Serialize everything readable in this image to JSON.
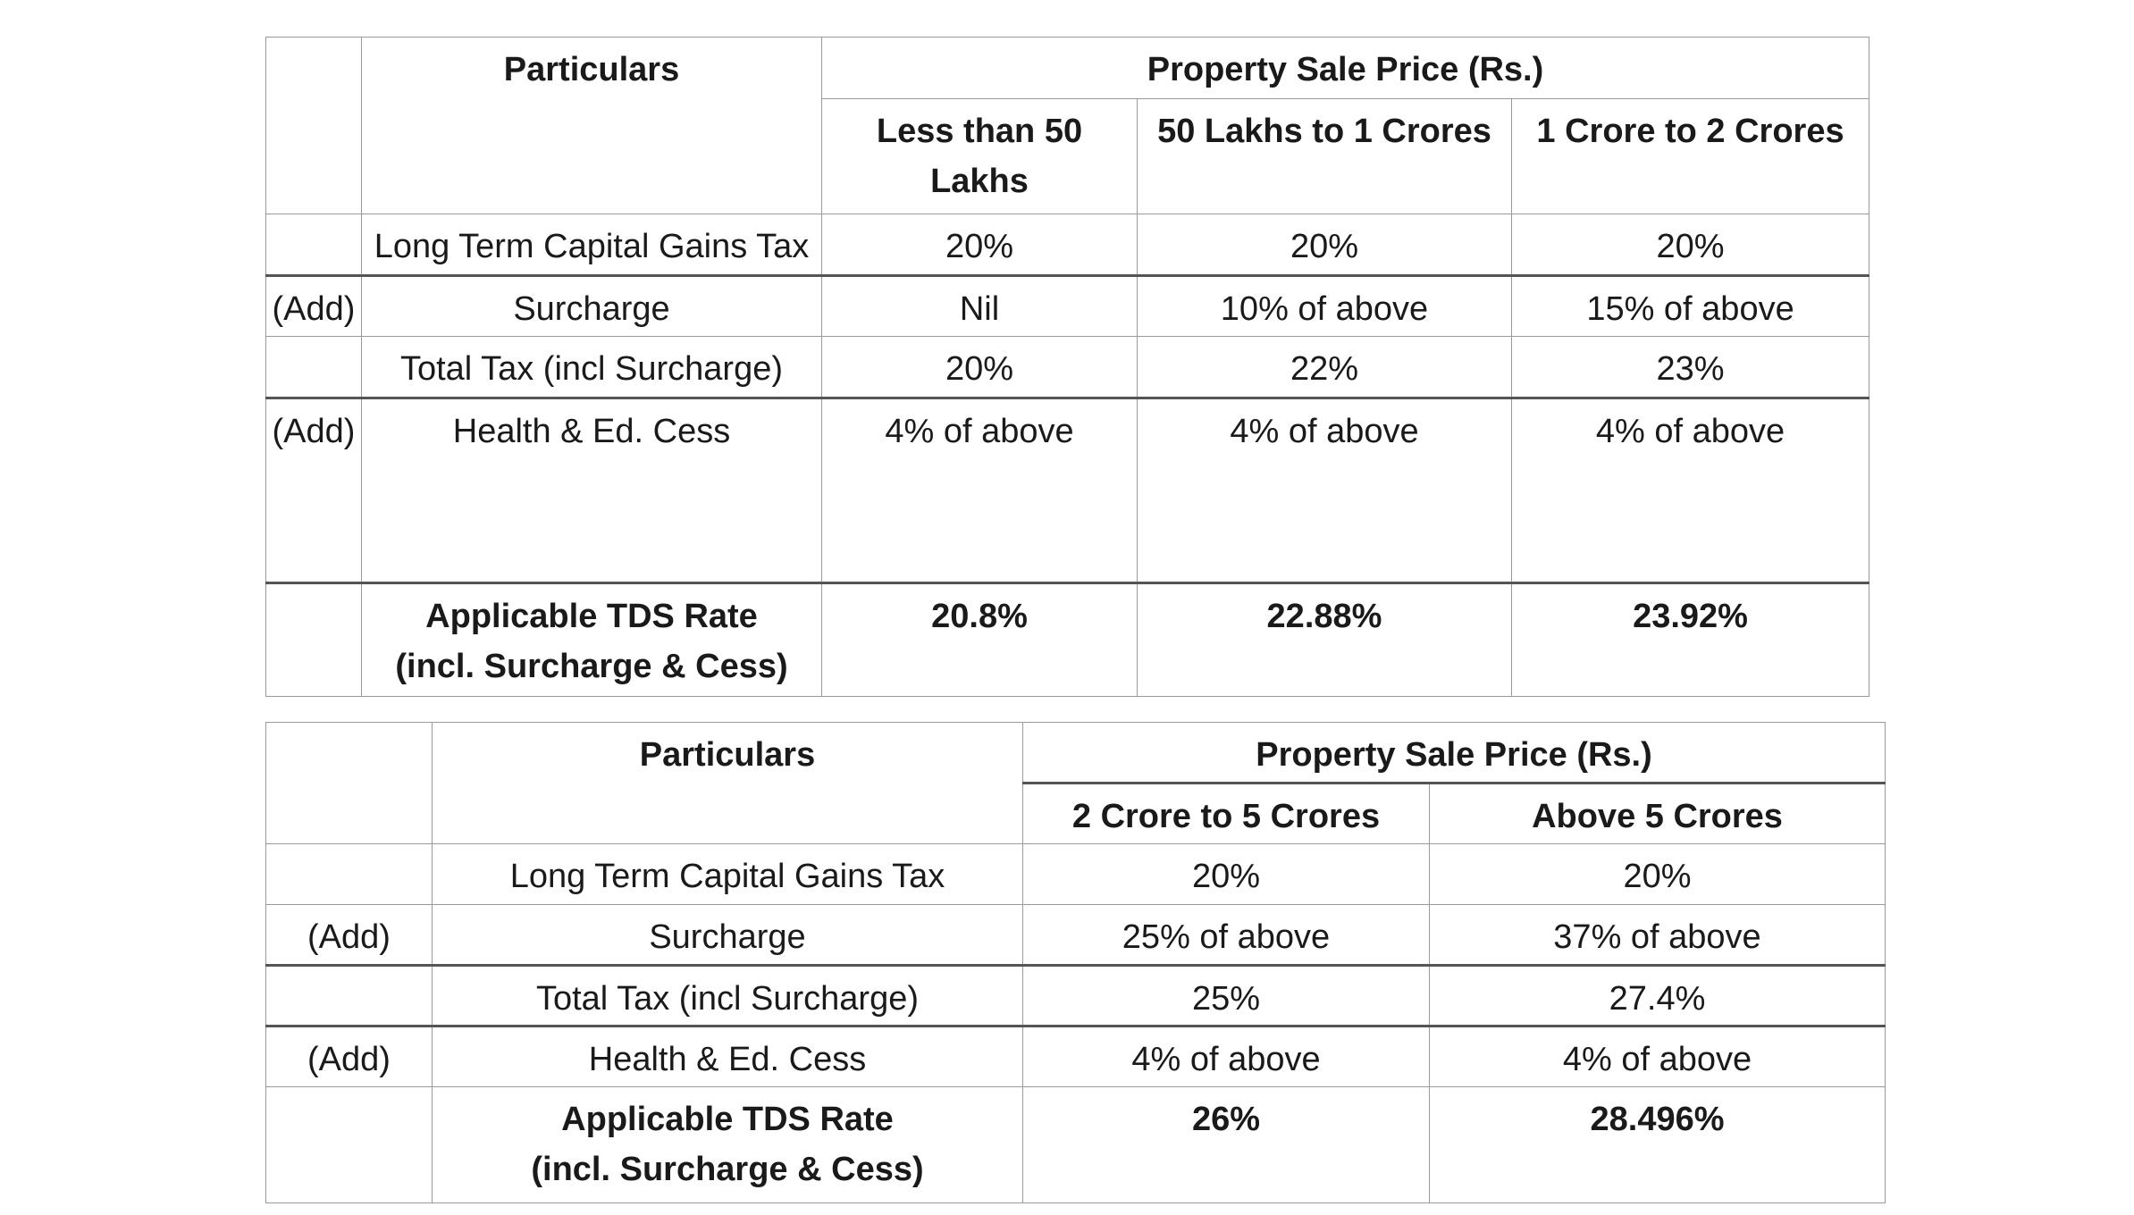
{
  "table_1": {
    "particulars_header": "Particulars",
    "price_header": "Property Sale Price (Rs.)",
    "columns": [
      "Less than 50 Lakhs",
      "50 Lakhs to 1 Crores",
      "1 Crore to 2 Crores"
    ],
    "rows": [
      {
        "prefix": "",
        "label": "Long Term Capital Gains Tax",
        "values": [
          "20%",
          "20%",
          "20%"
        ]
      },
      {
        "prefix": "(Add)",
        "label": "Surcharge",
        "values": [
          "Nil",
          "10% of above",
          "15% of above"
        ]
      },
      {
        "prefix": "",
        "label": "Total Tax (incl Surcharge)",
        "values": [
          "20%",
          "22%",
          "23%"
        ]
      },
      {
        "prefix": "(Add)",
        "label": "Health & Ed. Cess",
        "values": [
          "4% of above",
          "4% of above",
          "4% of above"
        ]
      }
    ],
    "result": {
      "label_line1": "Applicable TDS Rate",
      "label_line2": "(incl. Surcharge & Cess)",
      "values": [
        "20.8%",
        "22.88%",
        "23.92%"
      ]
    }
  },
  "table_2": {
    "particulars_header": "Particulars",
    "price_header": "Property Sale Price (Rs.)",
    "columns": [
      "2 Crore to 5 Crores",
      "Above 5 Crores"
    ],
    "rows": [
      {
        "prefix": "",
        "label": "Long Term Capital Gains Tax",
        "values": [
          "20%",
          "20%"
        ]
      },
      {
        "prefix": "(Add)",
        "label": "Surcharge",
        "values": [
          "25% of above",
          "37% of above"
        ]
      },
      {
        "prefix": "",
        "label": "Total Tax (incl Surcharge)",
        "values": [
          "25%",
          "27.4%"
        ]
      },
      {
        "prefix": "(Add)",
        "label": "Health & Ed. Cess",
        "values": [
          "4% of above",
          "4% of above"
        ]
      }
    ],
    "result": {
      "label_line1": "Applicable TDS Rate",
      "label_line2": "(incl. Surcharge & Cess)",
      "values": [
        "26%",
        "28.496%"
      ]
    }
  }
}
